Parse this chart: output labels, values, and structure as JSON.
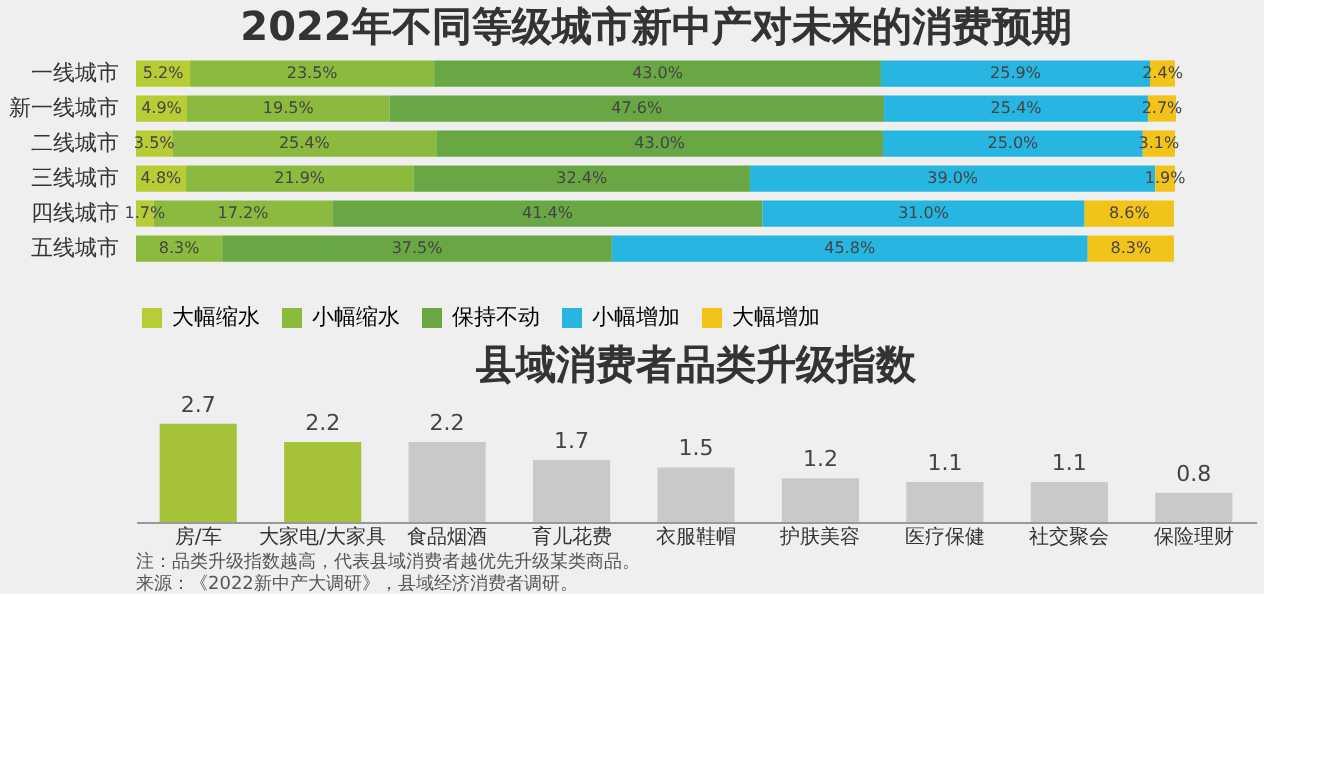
{
  "chart_data": [
    {
      "type": "bar",
      "orientation": "horizontal",
      "stacked": true,
      "tick_labels": "y",
      "grid": false,
      "legend": "bottom",
      "title": "2022年不同等级城市新中产对未来的消费预期",
      "categories": [
        "一线城市",
        "新一线城市",
        "二线城市",
        "三线城市",
        "四线城市",
        "五线城市"
      ],
      "series": [
        {
          "name": "大幅缩水",
          "color": "#b8cc36",
          "values": [
            5.2,
            4.9,
            3.5,
            4.8,
            1.7,
            null
          ],
          "value_labels": [
            "5.2%",
            "4.9%",
            "3.5%",
            "4.8%",
            "1.7%",
            null
          ]
        },
        {
          "name": "小幅缩水",
          "color": "#8cba3f",
          "values": [
            23.5,
            19.5,
            25.4,
            21.9,
            17.2,
            8.3
          ],
          "value_labels": [
            "23.5%",
            "19.5%",
            "25.4%",
            "21.9%",
            "17.2%",
            "8.3%"
          ]
        },
        {
          "name": "保持不动",
          "color": "#69a745",
          "values": [
            43.0,
            47.6,
            43.0,
            32.4,
            41.4,
            37.5
          ],
          "value_labels": [
            "43.0%",
            "47.6%",
            "43.0%",
            "32.4%",
            "41.4%",
            "37.5%"
          ]
        },
        {
          "name": "小幅增加",
          "color": "#27b6e2",
          "values": [
            25.9,
            25.4,
            25.0,
            39.0,
            31.0,
            45.8
          ],
          "value_labels": [
            "25.9%",
            "25.4%",
            "25.0%",
            "39.0%",
            "31.0%",
            "45.8%"
          ]
        },
        {
          "name": "大幅增加",
          "color": "#f2c318",
          "values": [
            2.4,
            2.7,
            3.1,
            1.9,
            8.6,
            8.3
          ],
          "value_labels": [
            "2.4%",
            "2.7%",
            "3.1%",
            "1.9%",
            "8.6%",
            "8.3%"
          ]
        }
      ]
    },
    {
      "type": "bar",
      "data_labels": true,
      "tick_labels": "x",
      "grid": false,
      "title": "县域消费者品类升级指数",
      "categories": [
        "房/车",
        "大家电/大家具",
        "食品烟酒",
        "育儿花费",
        "衣服鞋帽",
        "护肤美容",
        "医疗保健",
        "社交聚会",
        "保险理财"
      ],
      "values": [
        2.7,
        2.2,
        2.2,
        1.7,
        1.5,
        1.2,
        1.1,
        1.1,
        0.8
      ],
      "colors": [
        "#a5c23a",
        "#a5c23a",
        "#c9c9c9",
        "#c9c9c9",
        "#c9c9c9",
        "#c9c9c9",
        "#c9c9c9",
        "#c9c9c9",
        "#c9c9c9"
      ],
      "annotations": [
        "注：品类升级指数越高，代表县域消费者越优先升级某类商品。",
        "来源：《2022新中产大调研》，县域经济消费者调研。"
      ]
    }
  ]
}
